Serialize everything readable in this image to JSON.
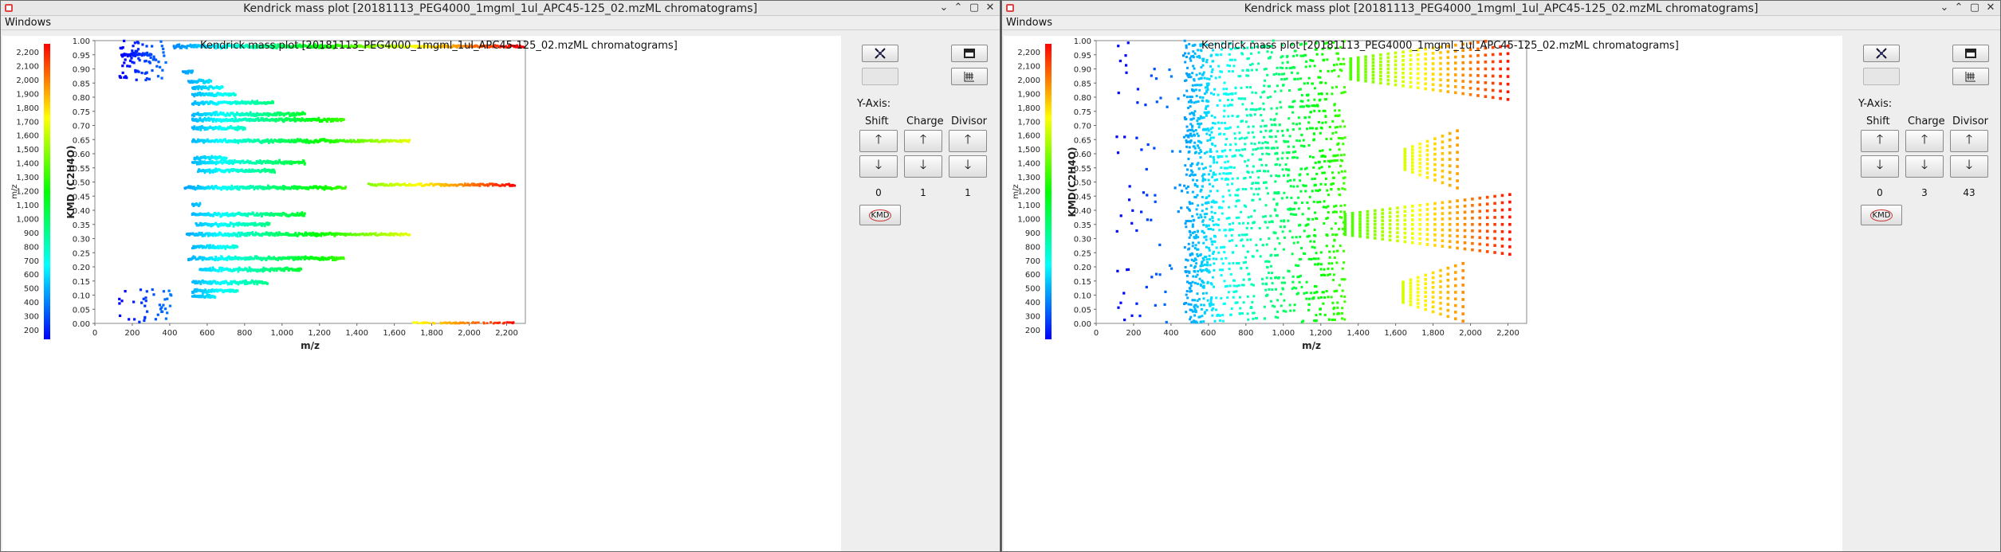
{
  "windows": [
    {
      "id": "w1",
      "window_title": "Kendrick mass plot [20181113_PEG4000_1mgml_1ul_APC45-125_02.mzML chromatograms]",
      "menu": [
        "Windows"
      ],
      "chart_title": "Kendrick mass plot [20181113_PEG4000_1mgml_1ul_APC45-125_02.mzML chromatograms]",
      "controls": {
        "y_axis_label": "Y-Axis:",
        "shift_label": "Shift",
        "charge_label": "Charge",
        "divisor_label": "Divisor",
        "shift_value": "0",
        "charge_value": "1",
        "divisor_value": "1",
        "kmd_button": "KMD"
      },
      "chart_data": {
        "type": "scatter",
        "title": "Kendrick mass plot [20181113_PEG4000_1mgml_1ul_APC45-125_02.mzML chromatograms]",
        "xlabel": "m/z",
        "ylabel": "KMD (C2H4O)",
        "xlim": [
          0,
          2300
        ],
        "ylim": [
          0,
          1.0
        ],
        "xticks": [
          "0",
          "200",
          "400",
          "600",
          "800",
          "1,000",
          "1,200",
          "1,400",
          "1,600",
          "1,800",
          "2,000",
          "2,200"
        ],
        "yticks": [
          "0.00",
          "0.05",
          "0.10",
          "0.15",
          "0.20",
          "0.25",
          "0.30",
          "0.35",
          "0.40",
          "0.45",
          "0.50",
          "0.55",
          "0.60",
          "0.65",
          "0.70",
          "0.75",
          "0.80",
          "0.85",
          "0.90",
          "0.95",
          "1.00"
        ],
        "colorbar": {
          "label": "m/z",
          "ticks": [
            "200",
            "300",
            "400",
            "500",
            "600",
            "700",
            "800",
            "900",
            "1,000",
            "1,100",
            "1,200",
            "1,300",
            "1,400",
            "1,500",
            "1,600",
            "1,700",
            "1,800",
            "1,900",
            "2,000",
            "2,100",
            "2,200"
          ],
          "range": [
            150,
            2250
          ]
        },
        "grid": false,
        "bands": [
          {
            "y": 0.98,
            "x_start": 420,
            "x_end": 2290
          },
          {
            "y": 0.95,
            "x_start": 140,
            "x_end": 300
          },
          {
            "y": 0.89,
            "x_start": 470,
            "x_end": 520
          },
          {
            "y": 0.855,
            "x_start": 500,
            "x_end": 620
          },
          {
            "y": 0.835,
            "x_start": 520,
            "x_end": 680
          },
          {
            "y": 0.81,
            "x_start": 520,
            "x_end": 750
          },
          {
            "y": 0.78,
            "x_start": 520,
            "x_end": 950
          },
          {
            "y": 0.74,
            "x_start": 520,
            "x_end": 1120
          },
          {
            "y": 0.72,
            "x_start": 520,
            "x_end": 1330
          },
          {
            "y": 0.69,
            "x_start": 520,
            "x_end": 800
          },
          {
            "y": 0.645,
            "x_start": 520,
            "x_end": 1680
          },
          {
            "y": 0.585,
            "x_start": 530,
            "x_end": 700
          },
          {
            "y": 0.57,
            "x_start": 520,
            "x_end": 1120
          },
          {
            "y": 0.54,
            "x_start": 550,
            "x_end": 960
          },
          {
            "y": 0.48,
            "x_start": 480,
            "x_end": 1340
          },
          {
            "y": 0.49,
            "x_start": 1460,
            "x_end": 2240
          },
          {
            "y": 0.42,
            "x_start": 520,
            "x_end": 560
          },
          {
            "y": 0.385,
            "x_start": 520,
            "x_end": 1120
          },
          {
            "y": 0.35,
            "x_start": 540,
            "x_end": 930
          },
          {
            "y": 0.315,
            "x_start": 490,
            "x_end": 1680
          },
          {
            "y": 0.27,
            "x_start": 520,
            "x_end": 760
          },
          {
            "y": 0.23,
            "x_start": 500,
            "x_end": 1330
          },
          {
            "y": 0.19,
            "x_start": 560,
            "x_end": 1100
          },
          {
            "y": 0.145,
            "x_start": 520,
            "x_end": 920
          },
          {
            "y": 0.115,
            "x_start": 520,
            "x_end": 760
          },
          {
            "y": 0.095,
            "x_start": 520,
            "x_end": 640
          },
          {
            "y": 0.0,
            "x_start": 1700,
            "x_end": 2240
          }
        ]
      }
    },
    {
      "id": "w2",
      "window_title": "Kendrick mass plot [20181113_PEG4000_1mgml_1ul_APC45-125_02.mzML chromatograms]",
      "menu": [
        "Windows"
      ],
      "chart_title": "Kendrick mass plot [20181113_PEG4000_1mgml_1ul_APC45-125_02.mzML chromatograms]",
      "controls": {
        "y_axis_label": "Y-Axis:",
        "shift_label": "Shift",
        "charge_label": "Charge",
        "divisor_label": "Divisor",
        "shift_value": "0",
        "charge_value": "3",
        "divisor_value": "43",
        "kmd_button": "KMD"
      },
      "chart_data": {
        "type": "scatter",
        "title": "Kendrick mass plot [20181113_PEG4000_1mgml_1ul_APC45-125_02.mzML chromatograms]",
        "xlabel": "m/z",
        "ylabel": "KMD(C2H4O)",
        "xlim": [
          0,
          2300
        ],
        "ylim": [
          0,
          1.0
        ],
        "xticks": [
          "0",
          "200",
          "400",
          "600",
          "800",
          "1,000",
          "1,200",
          "1,400",
          "1,600",
          "1,800",
          "2,000",
          "2,200"
        ],
        "yticks": [
          "0.00",
          "0.05",
          "0.10",
          "0.15",
          "0.20",
          "0.25",
          "0.30",
          "0.35",
          "0.40",
          "0.45",
          "0.50",
          "0.55",
          "0.60",
          "0.65",
          "0.70",
          "0.75",
          "0.80",
          "0.85",
          "0.90",
          "0.95",
          "1.00"
        ],
        "colorbar": {
          "label": "m/z",
          "ticks": [
            "200",
            "300",
            "400",
            "500",
            "600",
            "700",
            "800",
            "900",
            "1,000",
            "1,100",
            "1,200",
            "1,300",
            "1,400",
            "1,500",
            "1,600",
            "1,700",
            "1,800",
            "1,900",
            "2,000",
            "2,100",
            "2,200"
          ],
          "range": [
            150,
            2250
          ]
        },
        "grid": false,
        "dense_region": {
          "x_start": 480,
          "x_end": 1330,
          "y_start": 0.0,
          "y_end": 1.0
        },
        "fan_groups": [
          {
            "y_center": 0.9,
            "x_start": 1360,
            "x_end": 2200
          },
          {
            "y_center": 0.35,
            "x_start": 1330,
            "x_end": 2240
          },
          {
            "y_center": 0.58,
            "x_start": 1650,
            "x_end": 1960
          },
          {
            "y_center": 0.11,
            "x_start": 1640,
            "x_end": 1990
          }
        ]
      }
    }
  ]
}
